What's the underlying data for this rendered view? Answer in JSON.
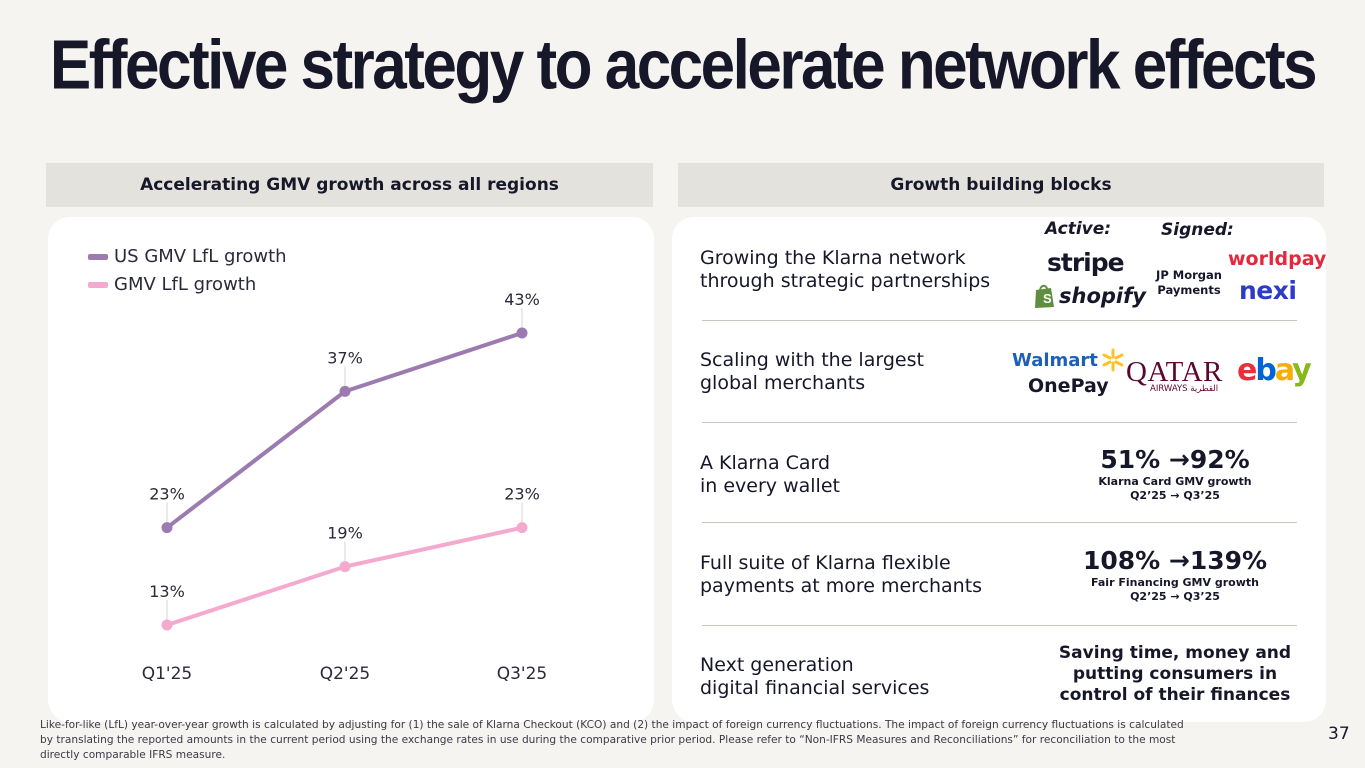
{
  "title": "Effective strategy to accelerate network effects",
  "left_panel": {
    "header": "Accelerating GMV growth across all regions"
  },
  "right_panel": {
    "header": "Growth building blocks",
    "active_label": "Active:",
    "signed_label": "Signed:",
    "rows": [
      {
        "line1": "Growing the Klarna network",
        "line2": "through strategic partnerships"
      },
      {
        "line1": "Scaling with the largest",
        "line2": "global merchants"
      },
      {
        "line1": "A Klarna Card",
        "line2": "in every wallet"
      },
      {
        "line1": "Full suite of Klarna flexible",
        "line2": "payments at more merchants"
      },
      {
        "line1": "Next generation",
        "line2": "digital financial services"
      }
    ],
    "logos": {
      "stripe": "stripe",
      "shopify": "shopify",
      "jpmorgan_line1": "JP Morgan",
      "jpmorgan_line2": "Payments",
      "worldpay": "worldpay",
      "nexi": "nexi",
      "walmart": "Walmart",
      "onepay": "OnePay",
      "qatar": "QATAR",
      "qatar_sub": "AIRWAYS القطرية",
      "ebay_e": "e",
      "ebay_b": "b",
      "ebay_a": "a",
      "ebay_y": "y"
    },
    "card_metric": {
      "value": "51% →92%",
      "line1": "Klarna Card GMV growth",
      "line2": "Q2’25 → Q3’25"
    },
    "financing_metric": {
      "value": "108% →139%",
      "line1": "Fair Financing GMV growth",
      "line2": "Q2’25 → Q3’25"
    },
    "services_text": {
      "line1": "Saving time, money and",
      "line2": "putting consumers in",
      "line3": "control of their finances"
    }
  },
  "colors": {
    "us_series": "#9b7bb0",
    "gmv_series": "#f4a9ce",
    "ink": "#17172a",
    "panel_header": "#e4e2dc"
  },
  "chart_data": {
    "type": "line",
    "categories": [
      "Q1'25",
      "Q2'25",
      "Q3'25"
    ],
    "series": [
      {
        "name": "US GMV LfL growth",
        "values": [
          23,
          37,
          43
        ],
        "labels": [
          "23%",
          "37%",
          "43%"
        ]
      },
      {
        "name": "GMV LfL growth",
        "values": [
          13,
          19,
          23
        ],
        "labels": [
          "13%",
          "19%",
          "23%"
        ]
      }
    ],
    "title": "Accelerating GMV growth across all regions",
    "xlabel": "",
    "ylabel": "",
    "ylim": [
      13,
      43
    ],
    "legend_position": "top-left",
    "grid": false
  },
  "footnote": "Like-for-like (LfL) year-over-year growth is calculated by adjusting for (1) the sale of Klarna Checkout (KCO) and (2) the impact of foreign currency fluctuations. The impact of foreign currency fluctuations is calculated by translating the reported amounts in the current period using the exchange rates in use during the comparative prior period. Please refer to “Non-IFRS Measures and Reconciliations” for reconciliation to the most directly comparable IFRS measure.",
  "page_number": "37"
}
